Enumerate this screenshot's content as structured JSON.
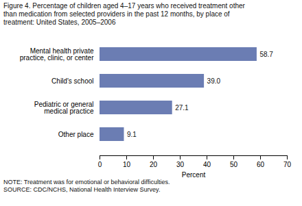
{
  "chart_data": {
    "type": "bar",
    "orientation": "horizontal",
    "title": "Figure 4. Percentage of children aged 4–17 years who received treatment other\nthan medication from selected providers in the past 12 months, by place of\ntreatment: United States, 2005–2006",
    "categories": [
      "Other place",
      "Pediatric or general\nmedical practice",
      "Child's school",
      "Mental health private\npractice, clinic, or center"
    ],
    "values": [
      9.1,
      27.1,
      39.0,
      58.7
    ],
    "value_labels": [
      "9.1",
      "27.1",
      "39.0",
      "58.7"
    ],
    "color": "#6b7db3",
    "xlabel": "Percent",
    "xlim": [
      0,
      70
    ],
    "xticks": [
      0,
      10,
      20,
      30,
      40,
      50,
      60,
      70
    ],
    "grid": false,
    "data_labels": true,
    "annotations": [
      "NOTE: Treatment was for emotional or behavioral difficulties.",
      "SOURCE: CDC/NCHS, National Health Interview Survey."
    ]
  }
}
